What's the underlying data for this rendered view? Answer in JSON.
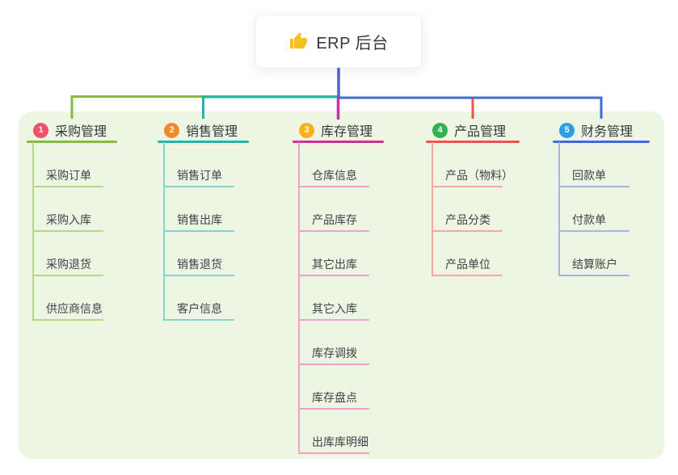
{
  "root": {
    "label": "ERP 后台",
    "icon": "thumbs-up",
    "icon_color": "#f4c01e",
    "trunk_line_color": "#4f63c8"
  },
  "panel": {
    "bg_color": "#ecf6e2"
  },
  "branches": [
    {
      "num": "1",
      "label": "采购管理",
      "badge_color": "#f2506b",
      "line_color": "#82bd40",
      "child_line_color": "#b4d98c",
      "children": [
        "采购订单",
        "采购入库",
        "采购退货",
        "供应商信息"
      ]
    },
    {
      "num": "2",
      "label": "销售管理",
      "badge_color": "#f6882c",
      "line_color": "#27b3ab",
      "child_line_color": "#86d4cd",
      "children": [
        "销售订单",
        "销售出库",
        "销售退货",
        "客户信息"
      ]
    },
    {
      "num": "3",
      "label": "库存管理",
      "badge_color": "#fbb017",
      "line_color": "#cd2f9b",
      "child_line_color": "#f0a0cc",
      "children": [
        "仓库信息",
        "产品库存",
        "其它出库",
        "其它入库",
        "库存调拨",
        "库存盘点",
        "出库库明细"
      ]
    },
    {
      "num": "4",
      "label": "产品管理",
      "badge_color": "#2fb350",
      "line_color": "#f0534d",
      "child_line_color": "#f8a8a0",
      "children": [
        "产品（物料）",
        "产品分类",
        "产品单位"
      ]
    },
    {
      "num": "5",
      "label": "财务管理",
      "badge_color": "#2b9fe8",
      "line_color": "#3e6ae0",
      "child_line_color": "#a8b6dd",
      "children": [
        "回款单",
        "付款单",
        "结算账户"
      ]
    }
  ]
}
